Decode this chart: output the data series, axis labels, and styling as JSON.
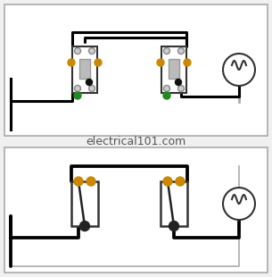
{
  "bg_color": "#f0f0f0",
  "top_panel_bg": "#ffffff",
  "bottom_panel_bg": "#ffffff",
  "border_color": "#aaaaaa",
  "wire_color_black": "#000000",
  "wire_color_gray": "#aaaaaa",
  "switch_fill": "#ffffff",
  "switch_border": "#000000",
  "toggle_fill": "#cccccc",
  "orange_dot": "#cc8800",
  "green_dot": "#006600",
  "dark_dot": "#222222",
  "watermark": "electrical101.com",
  "watermark_color": "#555555",
  "watermark_fontsize": 9
}
